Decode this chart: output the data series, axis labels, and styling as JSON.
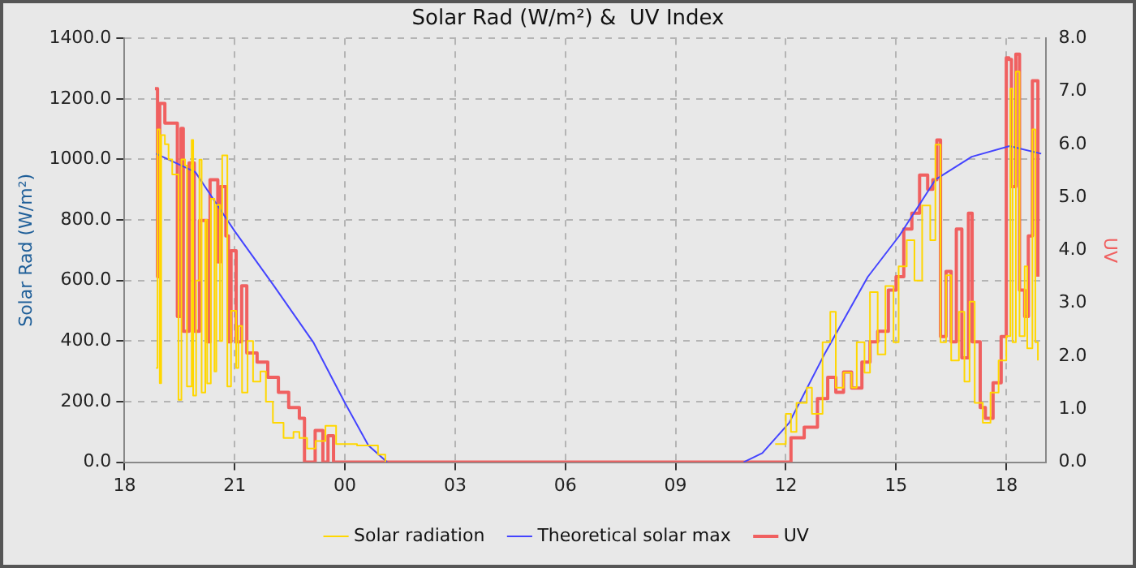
{
  "chart_data": {
    "type": "line",
    "title": "Solar Rad (W/m²) &  UV Index",
    "ylabel": "Solar Rad (W/m²)",
    "y2label": "UV",
    "xlim": [
      18,
      43.07
    ],
    "xticks": [
      {
        "value": 18,
        "label": "18"
      },
      {
        "value": 21,
        "label": "21"
      },
      {
        "value": 24,
        "label": "00"
      },
      {
        "value": 27,
        "label": "03"
      },
      {
        "value": 30,
        "label": "06"
      },
      {
        "value": 33,
        "label": "09"
      },
      {
        "value": 36,
        "label": "12"
      },
      {
        "value": 39,
        "label": "15"
      },
      {
        "value": 42,
        "label": "18"
      }
    ],
    "ylim": [
      0,
      1400
    ],
    "yticks": [
      {
        "value": 0,
        "label": "0.0"
      },
      {
        "value": 200,
        "label": "200.0"
      },
      {
        "value": 400,
        "label": "400.0"
      },
      {
        "value": 600,
        "label": "600.0"
      },
      {
        "value": 800,
        "label": "800.0"
      },
      {
        "value": 1000,
        "label": "1000.0"
      },
      {
        "value": 1200,
        "label": "1200.0"
      },
      {
        "value": 1400,
        "label": "1400.0"
      }
    ],
    "y2lim": [
      0,
      8
    ],
    "y2ticks": [
      {
        "value": 0,
        "label": "0.0"
      },
      {
        "value": 1,
        "label": "1.0"
      },
      {
        "value": 2,
        "label": "2.0"
      },
      {
        "value": 3,
        "label": "3.0"
      },
      {
        "value": 4,
        "label": "4.0"
      },
      {
        "value": 5,
        "label": "5.0"
      },
      {
        "value": 6,
        "label": "6.0"
      },
      {
        "value": 7,
        "label": "7.0"
      },
      {
        "value": 8,
        "label": "8.0"
      }
    ],
    "grid": true,
    "legend": "bottom",
    "marker": "none",
    "series": [
      {
        "name": "Solar radiation",
        "type": "step",
        "color": "#ffd700",
        "x": [
          18.86,
          18.9,
          18.96,
          19.0,
          19.1,
          19.2,
          19.3,
          19.47,
          19.55,
          19.65,
          19.7,
          19.83,
          19.87,
          19.95,
          20.04,
          20.1,
          20.2,
          20.25,
          20.35,
          20.45,
          20.5,
          20.6,
          20.66,
          20.8,
          20.9,
          21.04,
          21.1,
          21.2,
          21.35,
          21.5,
          21.7,
          21.85,
          22.04,
          22.33,
          22.6,
          22.76,
          22.97,
          23.2,
          23.47,
          23.76,
          24.0,
          24.33,
          24.9,
          25.1,
          30,
          35.29,
          35.71,
          36.0,
          36.14,
          36.29,
          36.57,
          36.71,
          37.0,
          37.21,
          37.36,
          37.57,
          37.79,
          37.93,
          38.14,
          38.29,
          38.5,
          38.71,
          38.93,
          39.07,
          39.29,
          39.5,
          39.71,
          39.93,
          40.07,
          40.21,
          40.36,
          40.5,
          40.71,
          40.86,
          41.0,
          41.14,
          41.36,
          41.57,
          41.79,
          42.0,
          42.11,
          42.17,
          42.26,
          42.36,
          42.5,
          42.57,
          42.71,
          42.79,
          42.86
        ],
        "values": [
          311,
          1099,
          261,
          1080,
          1050,
          1000,
          950,
          206,
          1000,
          980,
          250,
          1064,
          220,
          600,
          999,
          230,
          800,
          260,
          870,
          300,
          850,
          400,
          1013,
          250,
          500,
          311,
          450,
          230,
          400,
          266,
          300,
          200,
          130,
          80,
          100,
          80,
          45,
          70,
          120,
          60,
          60,
          55,
          25,
          0,
          null,
          null,
          60,
          160,
          100,
          196,
          246,
          160,
          396,
          497,
          246,
          296,
          246,
          396,
          296,
          562,
          356,
          582,
          396,
          647,
          733,
          600,
          848,
          733,
          1049,
          396,
          617,
          336,
          497,
          266,
          530,
          196,
          130,
          230,
          336,
          416,
          1234,
          396,
          1290,
          416,
          647,
          376,
          1099,
          396,
          336
        ]
      },
      {
        "name": "Theoretical solar max",
        "type": "line",
        "color": "#4444ff",
        "x": [
          18.86,
          19.93,
          21.0,
          22.07,
          23.14,
          24.0,
          24.64,
          25.15,
          30,
          34.85,
          35.36,
          36.09,
          37.07,
          38.23,
          39.09,
          40.07,
          41.06,
          42.09,
          42.95
        ],
        "values": [
          1019,
          958,
          763,
          582,
          396,
          196,
          55,
          0,
          null,
          0,
          30,
          130,
          361,
          612,
          748,
          933,
          1009,
          1044,
          1019
        ]
      },
      {
        "name": "UV",
        "type": "step",
        "axis": "y2",
        "color": "#f06060",
        "x": [
          18.83,
          18.9,
          18.96,
          19.1,
          19.33,
          19.44,
          19.54,
          19.6,
          19.76,
          19.9,
          20.04,
          20.26,
          20.33,
          20.54,
          20.61,
          20.76,
          20.83,
          20.9,
          21.04,
          21.19,
          21.33,
          21.61,
          21.9,
          22.19,
          22.47,
          22.76,
          22.9,
          23.19,
          23.4,
          23.54,
          23.69,
          30,
          36.07,
          36.14,
          36.5,
          36.86,
          37.14,
          37.36,
          37.57,
          37.79,
          38.07,
          38.29,
          38.5,
          38.79,
          39.0,
          39.21,
          39.43,
          39.64,
          39.86,
          40.0,
          40.11,
          40.21,
          40.36,
          40.5,
          40.64,
          40.79,
          40.97,
          41.07,
          41.29,
          41.43,
          41.64,
          41.86,
          42.0,
          42.07,
          42.14,
          42.26,
          42.36,
          42.5,
          42.6,
          42.71,
          42.86
        ],
        "values": [
          7.05,
          3.5,
          6.77,
          6.4,
          6.4,
          2.75,
          6.3,
          2.47,
          5.65,
          2.47,
          4.56,
          2.27,
          5.33,
          3.78,
          5.2,
          4.27,
          2.27,
          3.99,
          2.27,
          3.33,
          2.06,
          1.89,
          1.6,
          1.32,
          1.03,
          0.83,
          0,
          0.6,
          0,
          0.5,
          0,
          0,
          0,
          0.46,
          0.66,
          1.2,
          1.6,
          1.32,
          1.7,
          1.4,
          1.89,
          2.27,
          2.47,
          3.25,
          3.5,
          4.4,
          4.7,
          5.42,
          5.15,
          5.33,
          6.08,
          2.37,
          3.6,
          2.27,
          4.4,
          1.97,
          4.7,
          2.27,
          1.03,
          0.83,
          1.5,
          2.37,
          7.63,
          7.6,
          5.2,
          7.7,
          3.25,
          2.75,
          4.27,
          7.2,
          3.5
        ]
      }
    ]
  }
}
